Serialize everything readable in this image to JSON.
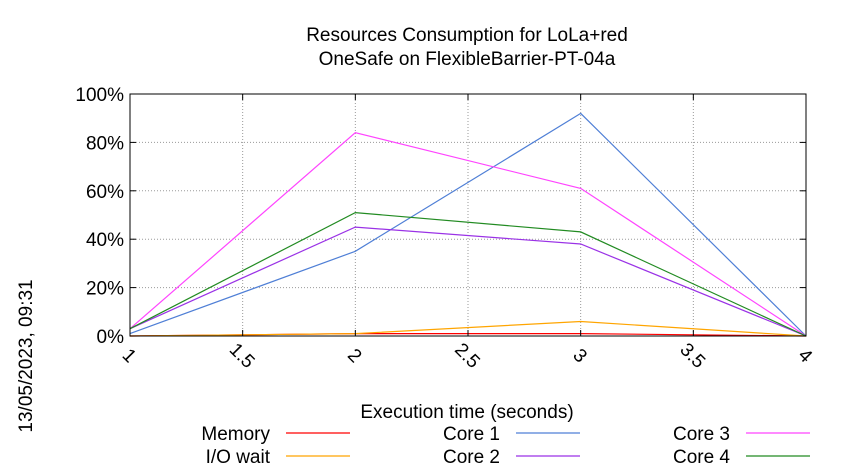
{
  "chart_data": {
    "type": "line",
    "title": [
      "Resources Consumption for LoLa+red",
      "OneSafe on FlexibleBarrier-PT-04a"
    ],
    "xlabel": "Execution time (seconds)",
    "ylabel": "",
    "side_label": "13/05/2023, 09:31",
    "xlim": [
      1,
      4
    ],
    "ylim": [
      0,
      100
    ],
    "x_ticks": [
      "1",
      "1.5",
      "2",
      "2.5",
      "3",
      "3.5",
      "4"
    ],
    "y_ticks": [
      "0%",
      "20%",
      "40%",
      "60%",
      "80%",
      "100%"
    ],
    "grid": true,
    "legend_position": "bottom",
    "x": [
      1,
      2,
      3,
      4
    ],
    "series": [
      {
        "name": "Memory",
        "color": "#ff0000",
        "values": [
          0,
          1,
          1,
          0
        ]
      },
      {
        "name": "I/O wait",
        "color": "#ffa500",
        "values": [
          0,
          1,
          6,
          0
        ]
      },
      {
        "name": "Core 1",
        "color": "#4f7fd6",
        "values": [
          1,
          35,
          92,
          0
        ]
      },
      {
        "name": "Core 2",
        "color": "#9a32e6",
        "values": [
          3,
          45,
          38,
          0
        ]
      },
      {
        "name": "Core 3",
        "color": "#ff44ff",
        "values": [
          3,
          84,
          61,
          0
        ]
      },
      {
        "name": "Core 4",
        "color": "#228b22",
        "values": [
          3,
          51,
          43,
          0
        ]
      }
    ]
  }
}
